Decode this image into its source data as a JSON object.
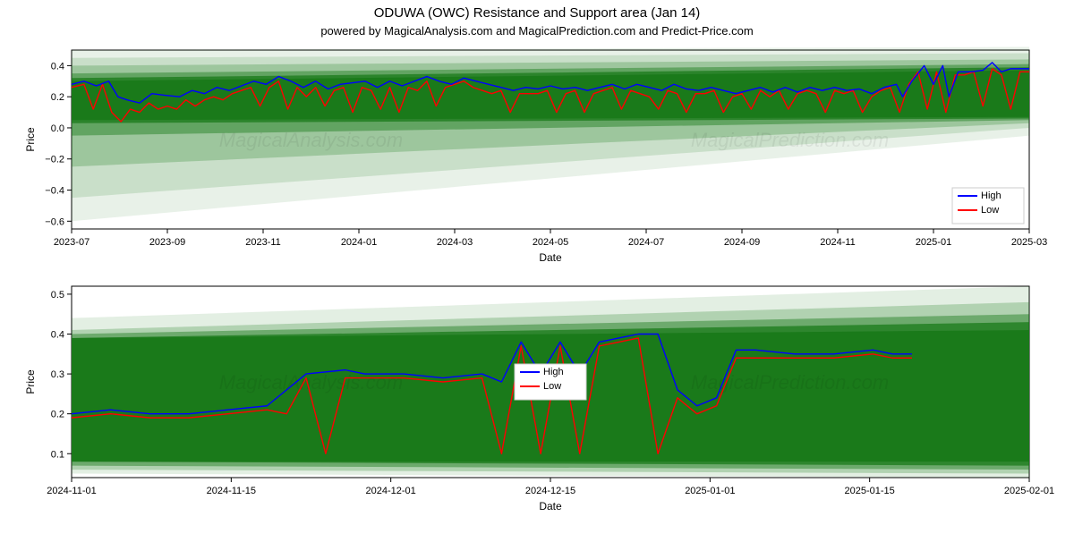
{
  "title": "ODUWA (OWC) Resistance and Support area (Jan 14)",
  "subtitle": "powered by MagicalAnalysis.com and MagicalPrediction.com and Predict-Price.com",
  "colors": {
    "background": "#ffffff",
    "plot_bg": "#ffffff",
    "spine": "#000000",
    "grid": "#e0e0e0",
    "band_dark": "#1a7a1a",
    "band_mid": "#3d9e3d",
    "band_light": "#b8e0b8",
    "high_line": "#0000ff",
    "low_line": "#ff0000",
    "text": "#000000"
  },
  "top_chart": {
    "type": "line",
    "ylabel": "Price",
    "xlabel": "Date",
    "ylim": [
      -0.65,
      0.5
    ],
    "yticks": [
      -0.6,
      -0.4,
      -0.2,
      0.0,
      0.2,
      0.4
    ],
    "xticks": [
      "2023-07",
      "2023-09",
      "2023-11",
      "2024-01",
      "2024-03",
      "2024-05",
      "2024-07",
      "2024-09",
      "2024-11",
      "2025-01",
      "2025-03"
    ],
    "x_range": [
      0,
      620
    ],
    "band_layers": [
      {
        "opacity": 0.1,
        "top_y0": 0.5,
        "top_y1": 0.52,
        "bot_y0": -0.6,
        "bot_y1": -0.05
      },
      {
        "opacity": 0.15,
        "top_y0": 0.45,
        "top_y1": 0.48,
        "bot_y0": -0.45,
        "bot_y1": 0.0
      },
      {
        "opacity": 0.25,
        "top_y0": 0.4,
        "top_y1": 0.44,
        "bot_y0": -0.25,
        "bot_y1": 0.03
      },
      {
        "opacity": 0.45,
        "top_y0": 0.35,
        "top_y1": 0.41,
        "bot_y0": -0.05,
        "bot_y1": 0.05
      },
      {
        "opacity": 0.75,
        "top_y0": 0.32,
        "top_y1": 0.39,
        "bot_y0": 0.03,
        "bot_y1": 0.06
      },
      {
        "opacity": 1.0,
        "top_y0": 0.3,
        "top_y1": 0.37,
        "bot_y0": 0.05,
        "bot_y1": 0.07
      }
    ],
    "legend": {
      "items": [
        {
          "label": "High",
          "color": "#0000ff"
        },
        {
          "label": "Low",
          "color": "#ff0000"
        }
      ],
      "pos": "bottom-right"
    },
    "watermarks": [
      "MagicalAnalysis.com",
      "MagicalPrediction.com"
    ],
    "series_high": [
      [
        0,
        0.28
      ],
      [
        8,
        0.3
      ],
      [
        16,
        0.27
      ],
      [
        24,
        0.3
      ],
      [
        30,
        0.2
      ],
      [
        36,
        0.18
      ],
      [
        44,
        0.16
      ],
      [
        52,
        0.22
      ],
      [
        60,
        0.21
      ],
      [
        70,
        0.2
      ],
      [
        78,
        0.24
      ],
      [
        86,
        0.22
      ],
      [
        94,
        0.26
      ],
      [
        102,
        0.24
      ],
      [
        110,
        0.27
      ],
      [
        118,
        0.3
      ],
      [
        126,
        0.28
      ],
      [
        134,
        0.33
      ],
      [
        142,
        0.3
      ],
      [
        150,
        0.26
      ],
      [
        158,
        0.3
      ],
      [
        166,
        0.25
      ],
      [
        174,
        0.28
      ],
      [
        182,
        0.29
      ],
      [
        190,
        0.3
      ],
      [
        198,
        0.26
      ],
      [
        206,
        0.3
      ],
      [
        214,
        0.27
      ],
      [
        222,
        0.3
      ],
      [
        230,
        0.33
      ],
      [
        238,
        0.3
      ],
      [
        246,
        0.28
      ],
      [
        254,
        0.32
      ],
      [
        262,
        0.3
      ],
      [
        270,
        0.28
      ],
      [
        278,
        0.26
      ],
      [
        286,
        0.24
      ],
      [
        294,
        0.26
      ],
      [
        302,
        0.25
      ],
      [
        310,
        0.27
      ],
      [
        318,
        0.25
      ],
      [
        326,
        0.26
      ],
      [
        334,
        0.24
      ],
      [
        342,
        0.26
      ],
      [
        350,
        0.28
      ],
      [
        358,
        0.25
      ],
      [
        366,
        0.28
      ],
      [
        374,
        0.26
      ],
      [
        382,
        0.24
      ],
      [
        390,
        0.28
      ],
      [
        398,
        0.25
      ],
      [
        406,
        0.24
      ],
      [
        414,
        0.26
      ],
      [
        422,
        0.24
      ],
      [
        430,
        0.22
      ],
      [
        438,
        0.24
      ],
      [
        446,
        0.26
      ],
      [
        454,
        0.23
      ],
      [
        462,
        0.26
      ],
      [
        470,
        0.23
      ],
      [
        478,
        0.26
      ],
      [
        486,
        0.24
      ],
      [
        494,
        0.26
      ],
      [
        502,
        0.24
      ],
      [
        510,
        0.25
      ],
      [
        518,
        0.22
      ],
      [
        526,
        0.26
      ],
      [
        534,
        0.28
      ],
      [
        538,
        0.2
      ],
      [
        544,
        0.3
      ],
      [
        552,
        0.4
      ],
      [
        558,
        0.28
      ],
      [
        564,
        0.4
      ],
      [
        568,
        0.2
      ],
      [
        574,
        0.36
      ],
      [
        582,
        0.36
      ],
      [
        590,
        0.37
      ],
      [
        596,
        0.42
      ],
      [
        602,
        0.36
      ],
      [
        608,
        0.38
      ],
      [
        614,
        0.38
      ],
      [
        620,
        0.38
      ]
    ],
    "series_low": [
      [
        0,
        0.26
      ],
      [
        8,
        0.28
      ],
      [
        14,
        0.12
      ],
      [
        20,
        0.28
      ],
      [
        26,
        0.1
      ],
      [
        32,
        0.04
      ],
      [
        38,
        0.12
      ],
      [
        44,
        0.1
      ],
      [
        50,
        0.16
      ],
      [
        56,
        0.12
      ],
      [
        62,
        0.14
      ],
      [
        68,
        0.12
      ],
      [
        74,
        0.18
      ],
      [
        80,
        0.14
      ],
      [
        86,
        0.18
      ],
      [
        92,
        0.2
      ],
      [
        98,
        0.18
      ],
      [
        104,
        0.22
      ],
      [
        110,
        0.24
      ],
      [
        116,
        0.26
      ],
      [
        122,
        0.14
      ],
      [
        128,
        0.26
      ],
      [
        134,
        0.3
      ],
      [
        140,
        0.12
      ],
      [
        146,
        0.26
      ],
      [
        152,
        0.2
      ],
      [
        158,
        0.26
      ],
      [
        164,
        0.14
      ],
      [
        170,
        0.24
      ],
      [
        176,
        0.26
      ],
      [
        182,
        0.1
      ],
      [
        188,
        0.26
      ],
      [
        194,
        0.24
      ],
      [
        200,
        0.12
      ],
      [
        206,
        0.26
      ],
      [
        212,
        0.1
      ],
      [
        218,
        0.26
      ],
      [
        224,
        0.24
      ],
      [
        230,
        0.3
      ],
      [
        236,
        0.14
      ],
      [
        242,
        0.26
      ],
      [
        248,
        0.28
      ],
      [
        254,
        0.3
      ],
      [
        260,
        0.26
      ],
      [
        266,
        0.24
      ],
      [
        272,
        0.22
      ],
      [
        278,
        0.24
      ],
      [
        284,
        0.1
      ],
      [
        290,
        0.22
      ],
      [
        296,
        0.22
      ],
      [
        302,
        0.22
      ],
      [
        308,
        0.24
      ],
      [
        314,
        0.1
      ],
      [
        320,
        0.22
      ],
      [
        326,
        0.24
      ],
      [
        332,
        0.1
      ],
      [
        338,
        0.22
      ],
      [
        344,
        0.24
      ],
      [
        350,
        0.26
      ],
      [
        356,
        0.12
      ],
      [
        362,
        0.24
      ],
      [
        368,
        0.22
      ],
      [
        374,
        0.2
      ],
      [
        380,
        0.12
      ],
      [
        386,
        0.24
      ],
      [
        392,
        0.22
      ],
      [
        398,
        0.1
      ],
      [
        404,
        0.22
      ],
      [
        410,
        0.22
      ],
      [
        416,
        0.24
      ],
      [
        422,
        0.1
      ],
      [
        428,
        0.2
      ],
      [
        434,
        0.22
      ],
      [
        440,
        0.12
      ],
      [
        446,
        0.24
      ],
      [
        452,
        0.2
      ],
      [
        458,
        0.24
      ],
      [
        464,
        0.12
      ],
      [
        470,
        0.22
      ],
      [
        476,
        0.24
      ],
      [
        482,
        0.22
      ],
      [
        488,
        0.1
      ],
      [
        494,
        0.24
      ],
      [
        500,
        0.22
      ],
      [
        506,
        0.24
      ],
      [
        512,
        0.1
      ],
      [
        518,
        0.2
      ],
      [
        524,
        0.24
      ],
      [
        530,
        0.26
      ],
      [
        536,
        0.1
      ],
      [
        542,
        0.28
      ],
      [
        548,
        0.36
      ],
      [
        554,
        0.12
      ],
      [
        560,
        0.36
      ],
      [
        566,
        0.1
      ],
      [
        572,
        0.34
      ],
      [
        578,
        0.34
      ],
      [
        584,
        0.36
      ],
      [
        590,
        0.14
      ],
      [
        596,
        0.38
      ],
      [
        602,
        0.34
      ],
      [
        608,
        0.12
      ],
      [
        614,
        0.36
      ],
      [
        620,
        0.36
      ]
    ]
  },
  "bottom_chart": {
    "type": "line",
    "ylabel": "Price",
    "xlabel": "Date",
    "ylim": [
      0.04,
      0.52
    ],
    "yticks": [
      0.1,
      0.2,
      0.3,
      0.4,
      0.5
    ],
    "xticks": [
      "2024-11-01",
      "2024-11-15",
      "2024-12-01",
      "2024-12-15",
      "2025-01-01",
      "2025-01-15",
      "2025-02-01"
    ],
    "x_range": [
      0,
      98
    ],
    "band_layers": [
      {
        "opacity": 0.12,
        "top_y0": 0.44,
        "top_y1": 0.52,
        "bot_y0": 0.05,
        "bot_y1": 0.04
      },
      {
        "opacity": 0.25,
        "top_y0": 0.41,
        "top_y1": 0.48,
        "bot_y0": 0.06,
        "bot_y1": 0.05
      },
      {
        "opacity": 0.45,
        "top_y0": 0.4,
        "top_y1": 0.45,
        "bot_y0": 0.07,
        "bot_y1": 0.06
      },
      {
        "opacity": 0.75,
        "top_y0": 0.39,
        "top_y1": 0.43,
        "bot_y0": 0.08,
        "bot_y1": 0.07
      },
      {
        "opacity": 1.0,
        "top_y0": 0.39,
        "top_y1": 0.41,
        "bot_y0": 0.08,
        "bot_y1": 0.08
      }
    ],
    "legend": {
      "items": [
        {
          "label": "High",
          "color": "#0000ff"
        },
        {
          "label": "Low",
          "color": "#ff0000"
        }
      ],
      "pos": "center"
    },
    "watermarks": [
      "MagicalAnalysis.com",
      "MagicalPrediction.com"
    ],
    "series_high": [
      [
        0,
        0.2
      ],
      [
        4,
        0.21
      ],
      [
        8,
        0.2
      ],
      [
        12,
        0.2
      ],
      [
        16,
        0.21
      ],
      [
        20,
        0.22
      ],
      [
        24,
        0.3
      ],
      [
        28,
        0.31
      ],
      [
        30,
        0.3
      ],
      [
        34,
        0.3
      ],
      [
        38,
        0.29
      ],
      [
        42,
        0.3
      ],
      [
        44,
        0.28
      ],
      [
        46,
        0.38
      ],
      [
        48,
        0.3
      ],
      [
        50,
        0.38
      ],
      [
        52,
        0.3
      ],
      [
        54,
        0.38
      ],
      [
        56,
        0.39
      ],
      [
        58,
        0.4
      ],
      [
        60,
        0.4
      ],
      [
        62,
        0.26
      ],
      [
        64,
        0.22
      ],
      [
        66,
        0.24
      ],
      [
        68,
        0.36
      ],
      [
        70,
        0.36
      ],
      [
        74,
        0.35
      ],
      [
        78,
        0.35
      ],
      [
        82,
        0.36
      ],
      [
        84,
        0.35
      ],
      [
        86,
        0.35
      ]
    ],
    "series_low": [
      [
        0,
        0.19
      ],
      [
        4,
        0.2
      ],
      [
        8,
        0.19
      ],
      [
        12,
        0.19
      ],
      [
        16,
        0.2
      ],
      [
        20,
        0.21
      ],
      [
        22,
        0.2
      ],
      [
        24,
        0.29
      ],
      [
        26,
        0.1
      ],
      [
        28,
        0.29
      ],
      [
        30,
        0.29
      ],
      [
        34,
        0.29
      ],
      [
        38,
        0.28
      ],
      [
        42,
        0.29
      ],
      [
        44,
        0.1
      ],
      [
        46,
        0.37
      ],
      [
        48,
        0.1
      ],
      [
        50,
        0.37
      ],
      [
        52,
        0.1
      ],
      [
        54,
        0.37
      ],
      [
        56,
        0.38
      ],
      [
        58,
        0.39
      ],
      [
        60,
        0.1
      ],
      [
        62,
        0.24
      ],
      [
        64,
        0.2
      ],
      [
        66,
        0.22
      ],
      [
        68,
        0.34
      ],
      [
        70,
        0.34
      ],
      [
        74,
        0.34
      ],
      [
        78,
        0.34
      ],
      [
        82,
        0.35
      ],
      [
        84,
        0.34
      ],
      [
        86,
        0.34
      ]
    ]
  }
}
